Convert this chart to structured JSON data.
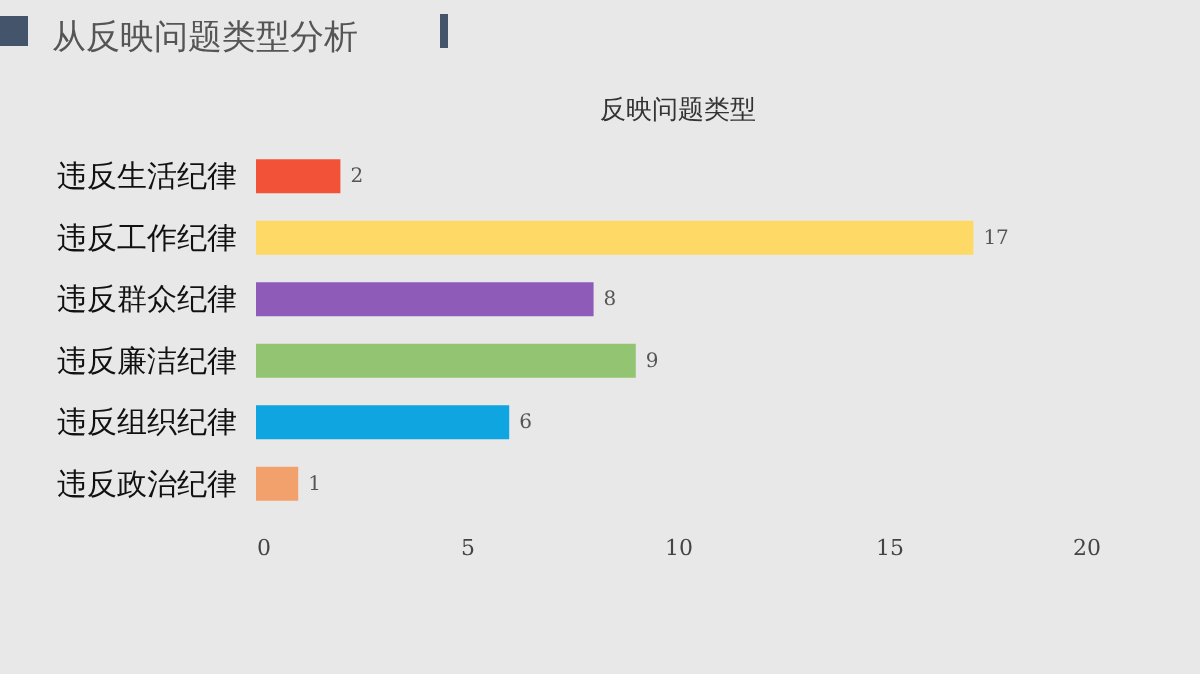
{
  "chart_data": {
    "type": "bar",
    "orientation": "horizontal",
    "title": "从反映问题类型分析",
    "subtitle": "反映问题类型",
    "categories": [
      "违反生活纪律",
      "违反工作纪律",
      "违反群众纪律",
      "违反廉洁纪律",
      "违反组织纪律",
      "违反政治纪律"
    ],
    "values": [
      2,
      17,
      8,
      9,
      6,
      1
    ],
    "colors": [
      "#f25237",
      "#ffd966",
      "#8f5bb8",
      "#93c472",
      "#0ea5e0",
      "#f2a06c"
    ],
    "xlim": [
      0,
      20
    ],
    "xticks": [
      0,
      5,
      10,
      15,
      20
    ],
    "grid": false,
    "data_labels": true
  }
}
